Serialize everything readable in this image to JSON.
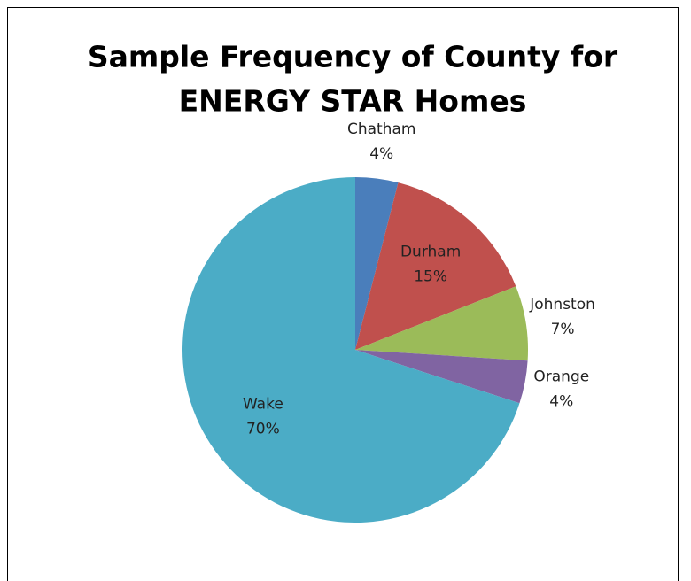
{
  "chart_data": {
    "type": "pie",
    "title": [
      "Sample Frequency of County for",
      "ENERGY STAR Homes"
    ],
    "categories": [
      "Chatham",
      "Durham",
      "Johnston",
      "Orange",
      "Wake"
    ],
    "values": [
      4,
      15,
      7,
      4,
      70
    ],
    "value_labels": [
      "4%",
      "15%",
      "7%",
      "4%",
      "70%"
    ],
    "colors": [
      "#4a7ebb",
      "#c0504d",
      "#9bbb59",
      "#8064a2",
      "#4bacc6"
    ]
  }
}
